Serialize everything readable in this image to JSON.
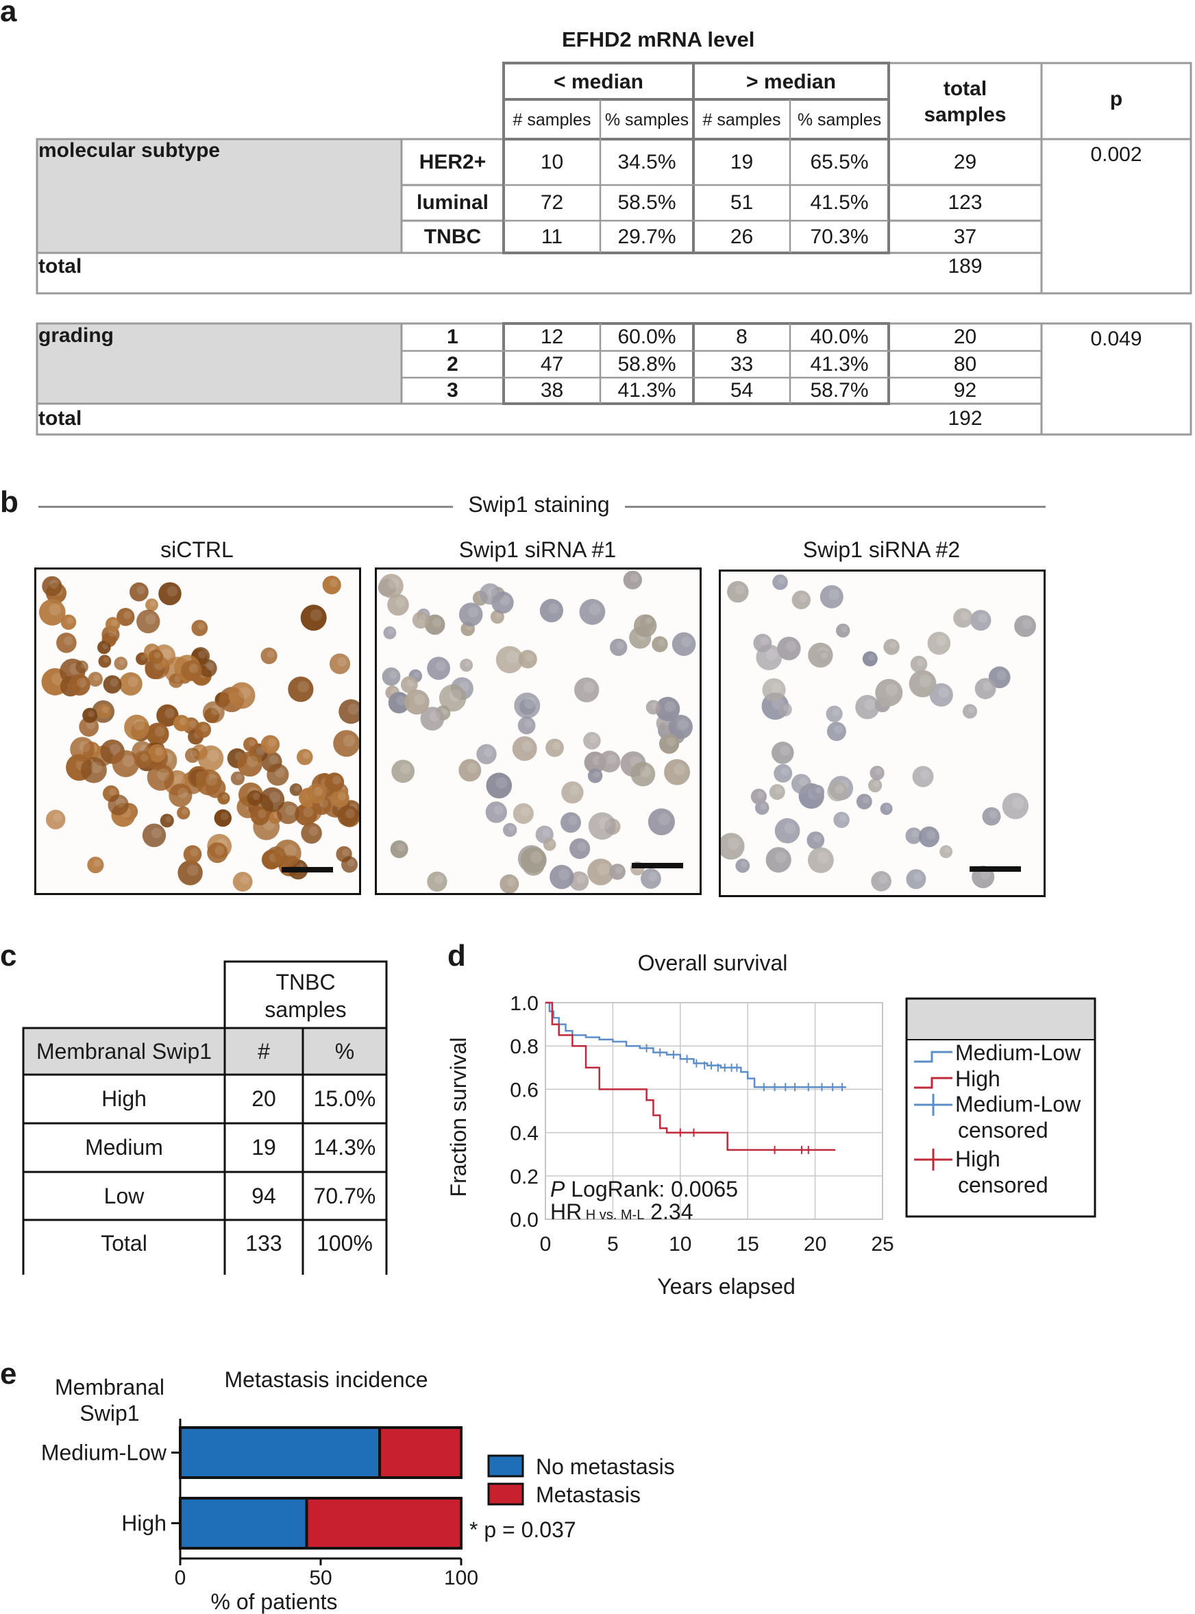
{
  "panel_a": {
    "letter": "a",
    "header": "EFHD2 mRNA level",
    "below_median": "< median",
    "above_median": "> median",
    "n_samples": "# samples",
    "pct_samples": "% samples",
    "total_samples": "total\nsamples",
    "p_label": "p",
    "subtype": {
      "label": "molecular subtype",
      "rows": [
        {
          "name": "HER2+",
          "n_lo": "10",
          "p_lo": "34.5%",
          "n_hi": "19",
          "p_hi": "65.5%",
          "total": "29"
        },
        {
          "name": "luminal",
          "n_lo": "72",
          "p_lo": "58.5%",
          "n_hi": "51",
          "p_hi": "41.5%",
          "total": "123"
        },
        {
          "name": "TNBC",
          "n_lo": "11",
          "p_lo": "29.7%",
          "n_hi": "26",
          "p_hi": "70.3%",
          "total": "37"
        }
      ],
      "total_label": "total",
      "total": "189",
      "p": "0.002"
    },
    "grading": {
      "label": "grading",
      "rows": [
        {
          "name": "1",
          "n_lo": "12",
          "p_lo": "60.0%",
          "n_hi": "8",
          "p_hi": "40.0%",
          "total": "20"
        },
        {
          "name": "2",
          "n_lo": "47",
          "p_lo": "58.8%",
          "n_hi": "33",
          "p_hi": "41.3%",
          "total": "80"
        },
        {
          "name": "3",
          "n_lo": "38",
          "p_lo": "41.3%",
          "n_hi": "54",
          "p_hi": "58.7%",
          "total": "92"
        }
      ],
      "total_label": "total",
      "total": "192",
      "p": "0.049"
    }
  },
  "panel_b": {
    "letter": "b",
    "title": "Swip1 staining",
    "images": [
      {
        "caption": "siCTRL"
      },
      {
        "caption": "Swip1 siRNA #1"
      },
      {
        "caption": "Swip1 siRNA #2"
      }
    ]
  },
  "panel_c": {
    "letter": "c",
    "header": "TNBC\nsamples",
    "col_label": "Membranal Swip1",
    "col_n": "#",
    "col_pct": "%",
    "rows": [
      {
        "name": "High",
        "n": "20",
        "pct": "15.0%"
      },
      {
        "name": "Medium",
        "n": "19",
        "pct": "14.3%"
      },
      {
        "name": "Low",
        "n": "94",
        "pct": "70.7%"
      },
      {
        "name": "Total",
        "n": "133",
        "pct": "100%"
      }
    ]
  },
  "panel_d": {
    "letter": "d",
    "annot_p": "P",
    "annot_logrank": " LogRank: 0.0065",
    "annot_hr": "HR",
    "annot_hr_sub": " H vs. M-L",
    "annot_hr_val": " 2.34",
    "legend_censored": "censored",
    "colors": {
      "medium_low": "#5b8ec9",
      "high": "#c0293a"
    }
  },
  "panel_e": {
    "letter": "e",
    "row_title": "Membranal\nSwip1",
    "pvalue": "* p = 0.037",
    "colors": {
      "no_met": "#1f6fb8",
      "met": "#c8202f"
    }
  },
  "chart_data": [
    {
      "type": "line",
      "title": "Overall survival",
      "xlabel": "Years elapsed",
      "ylabel": "Fraction survival",
      "xlim": [
        0,
        25
      ],
      "ylim": [
        0.0,
        1.0
      ],
      "xticks": [
        "0",
        "5",
        "10",
        "15",
        "20",
        "25"
      ],
      "yticks": [
        "0.0",
        "0.2",
        "0.4",
        "0.6",
        "0.8",
        "1.0"
      ],
      "grid": true,
      "series": [
        {
          "name": "Medium-Low",
          "step": [
            [
              0,
              1.0
            ],
            [
              0.3,
              0.96
            ],
            [
              0.6,
              0.93
            ],
            [
              1.0,
              0.9
            ],
            [
              1.5,
              0.87
            ],
            [
              2.0,
              0.85
            ],
            [
              3.0,
              0.84
            ],
            [
              4.0,
              0.83
            ],
            [
              5.0,
              0.82
            ],
            [
              6.0,
              0.8
            ],
            [
              7.0,
              0.79
            ],
            [
              8.0,
              0.77
            ],
            [
              9.0,
              0.76
            ],
            [
              10.0,
              0.74
            ],
            [
              11.0,
              0.72
            ],
            [
              12.0,
              0.71
            ],
            [
              13.0,
              0.7
            ],
            [
              14.5,
              0.68
            ],
            [
              15.0,
              0.65
            ],
            [
              15.5,
              0.61
            ],
            [
              22.3,
              0.61
            ]
          ],
          "censored": [
            [
              7.5,
              0.79
            ],
            [
              8.5,
              0.77
            ],
            [
              9.5,
              0.76
            ],
            [
              10.5,
              0.74
            ],
            [
              11.2,
              0.72
            ],
            [
              11.8,
              0.71
            ],
            [
              12.3,
              0.71
            ],
            [
              12.8,
              0.7
            ],
            [
              13.3,
              0.7
            ],
            [
              13.8,
              0.7
            ],
            [
              14.2,
              0.7
            ],
            [
              16.2,
              0.61
            ],
            [
              17.0,
              0.61
            ],
            [
              17.8,
              0.61
            ],
            [
              18.5,
              0.61
            ],
            [
              19.5,
              0.61
            ],
            [
              20.5,
              0.61
            ],
            [
              21.3,
              0.61
            ],
            [
              22.0,
              0.61
            ]
          ]
        },
        {
          "name": "High",
          "step": [
            [
              0,
              1.0
            ],
            [
              0.5,
              0.9
            ],
            [
              1.0,
              0.85
            ],
            [
              2.0,
              0.8
            ],
            [
              3.0,
              0.7
            ],
            [
              4.0,
              0.6
            ],
            [
              7.5,
              0.55
            ],
            [
              8.0,
              0.48
            ],
            [
              8.5,
              0.42
            ],
            [
              9.0,
              0.4
            ],
            [
              13.5,
              0.32
            ],
            [
              21.5,
              0.32
            ]
          ],
          "censored": [
            [
              10.0,
              0.4
            ],
            [
              11.0,
              0.4
            ],
            [
              17.0,
              0.32
            ],
            [
              19.0,
              0.32
            ],
            [
              19.5,
              0.32
            ]
          ]
        }
      ],
      "legend": [
        "Medium-Low",
        "High",
        "Medium-Low censored",
        "High censored"
      ]
    },
    {
      "type": "bar",
      "orientation": "horizontal",
      "stacked": true,
      "title": "Metastasis incidence",
      "xlabel": "% of patients",
      "xlim": [
        0,
        100
      ],
      "xticks": [
        "0",
        "50",
        "100"
      ],
      "categories": [
        "Medium-Low",
        "High"
      ],
      "series": [
        {
          "name": "No metastasis",
          "values": [
            71,
            45
          ]
        },
        {
          "name": "Metastasis",
          "values": [
            29,
            55
          ]
        }
      ]
    }
  ]
}
